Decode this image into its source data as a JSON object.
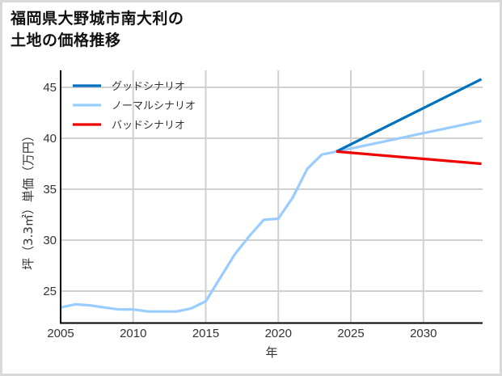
{
  "title": {
    "line1": "福岡県大野城市南大利の",
    "line2": "土地の価格推移"
  },
  "axes": {
    "xlabel": "年",
    "ylabel": "坪（3.3㎡）単価（万円）",
    "xticks": [
      "2005",
      "2010",
      "2015",
      "2020",
      "2025",
      "2030"
    ],
    "yticks": [
      "25",
      "30",
      "35",
      "40",
      "45"
    ]
  },
  "legend": [
    {
      "label": "グッドシナリオ",
      "color": "#0070C0"
    },
    {
      "label": "ノーマルシナリオ",
      "color": "#99CCFF"
    },
    {
      "label": "バッドシナリオ",
      "color": "#EE0000"
    }
  ],
  "chart_data": {
    "type": "line",
    "title": "福岡県大野城市南大利の土地の価格推移",
    "xlabel": "年",
    "ylabel": "坪（3.3㎡）単価（万円）",
    "xlim": [
      2005,
      2034
    ],
    "ylim": [
      21.8,
      47.2
    ],
    "grid": true,
    "legend_position": "upper left",
    "series": [
      {
        "name": "ノーマルシナリオ",
        "color": "#99CCFF",
        "x": [
          2005,
          2006,
          2007,
          2008,
          2009,
          2010,
          2011,
          2012,
          2013,
          2014,
          2015,
          2016,
          2017,
          2018,
          2019,
          2020,
          2021,
          2022,
          2023,
          2024,
          2034
        ],
        "values": [
          23.4,
          23.7,
          23.6,
          23.4,
          23.2,
          23.2,
          23.0,
          23.0,
          23.0,
          23.3,
          24.0,
          26.3,
          28.6,
          30.4,
          32.0,
          32.1,
          34.2,
          37.0,
          38.4,
          38.7,
          41.7
        ]
      },
      {
        "name": "グッドシナリオ",
        "color": "#0070C0",
        "x": [
          2024,
          2034
        ],
        "values": [
          38.7,
          45.8
        ]
      },
      {
        "name": "バッドシナリオ",
        "color": "#EE0000",
        "x": [
          2024,
          2034
        ],
        "values": [
          38.7,
          37.5
        ]
      }
    ]
  }
}
